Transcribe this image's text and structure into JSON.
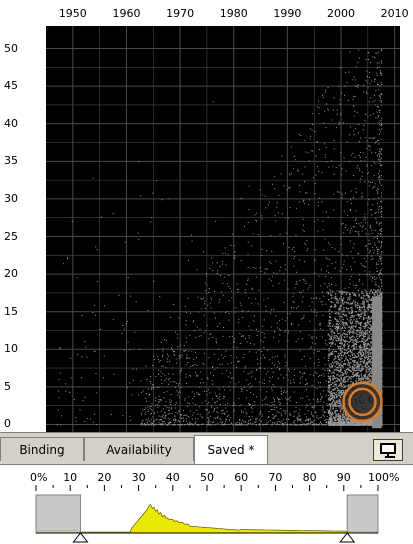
{
  "chart_data": {
    "type": "scatter",
    "title": "",
    "xlabel": "",
    "ylabel": "",
    "x_ticks": [
      "1950",
      "1960",
      "1970",
      "1980",
      "1990",
      "2000",
      "2010"
    ],
    "y_ticks": [
      "0",
      "5",
      "10",
      "15",
      "20",
      "25",
      "30",
      "35",
      "40",
      "45",
      "50"
    ],
    "xlim": [
      1945,
      2011
    ],
    "ylim": [
      -1,
      53
    ],
    "grid": true,
    "point_color": "#9a9a9a",
    "background": "#000000",
    "highlight": {
      "x": 2004,
      "y": 3.0,
      "color": "#e07a20"
    }
  },
  "tabs": [
    {
      "label": "Binding"
    },
    {
      "label": "Availability"
    },
    {
      "label": "Saved *"
    }
  ],
  "histogram": {
    "percent_labels": [
      "0%",
      "10",
      "20",
      "30",
      "40",
      "50",
      "60",
      "70",
      "80",
      "90",
      "100%"
    ],
    "range_low_pct": 13,
    "range_high_pct": 91,
    "fill_color": "#e8e800",
    "mask_color": "#c0c0c0"
  },
  "icons": {
    "toggle": "slider-toggle-icon"
  }
}
